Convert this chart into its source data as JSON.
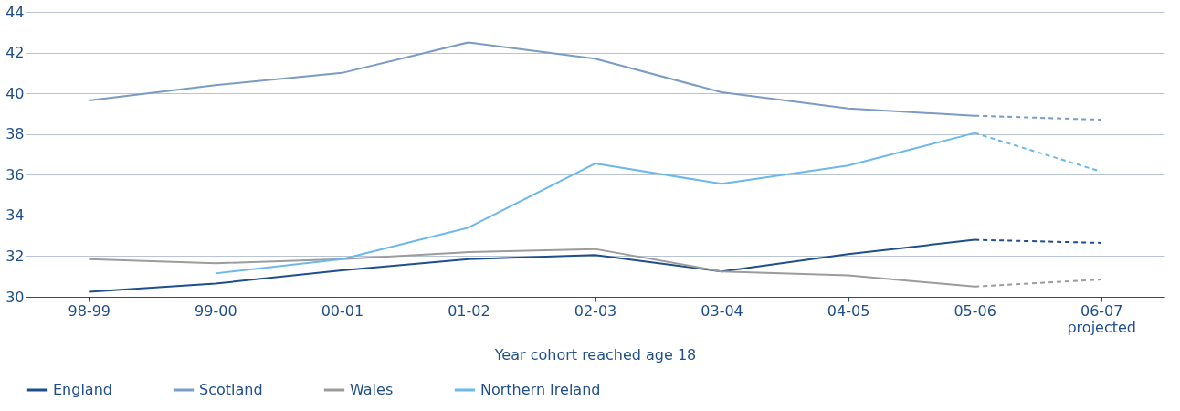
{
  "chart_data": {
    "type": "line",
    "xlabel": "Year cohort reached age 18",
    "categories": [
      "98-99",
      "99-00",
      "00-01",
      "01-02",
      "02-03",
      "03-04",
      "04-05",
      "05-06",
      "06-07 projected"
    ],
    "ylim": [
      30,
      44
    ],
    "yticks": [
      30,
      32,
      34,
      36,
      38,
      40,
      42,
      44
    ],
    "grid": "y",
    "legend": "bottom",
    "marker": "none",
    "line_style": "solid",
    "series": [
      {
        "name": "England",
        "color": "#1f4e8c",
        "values": [
          30.25,
          30.65,
          31.3,
          31.85,
          32.05,
          31.25,
          32.1,
          32.8,
          null
        ]
      },
      {
        "name": "Scotland",
        "color": "#7a9cc4",
        "values": [
          39.65,
          40.4,
          41.0,
          42.5,
          41.7,
          40.05,
          39.25,
          38.9,
          null
        ]
      },
      {
        "name": "Wales",
        "color": "#9c9c9c",
        "values": [
          31.85,
          31.65,
          31.85,
          32.2,
          32.35,
          31.25,
          31.05,
          30.5,
          null
        ]
      },
      {
        "name": "Northern Ireland",
        "color": "#6cb8ea",
        "values": [
          null,
          31.15,
          31.85,
          33.4,
          36.55,
          35.55,
          36.45,
          38.05,
          null
        ]
      },
      {
        "color": "#1f4e8c",
        "line_style": "dashed",
        "values": [
          null,
          null,
          null,
          null,
          null,
          null,
          null,
          32.8,
          32.65
        ]
      },
      {
        "color": "#7a9cc4",
        "line_style": "dashed",
        "values": [
          null,
          null,
          null,
          null,
          null,
          null,
          null,
          38.9,
          38.7
        ]
      },
      {
        "color": "#9c9c9c",
        "line_style": "dashed",
        "values": [
          null,
          null,
          null,
          null,
          null,
          null,
          null,
          30.5,
          30.85
        ]
      },
      {
        "color": "#6cb8ea",
        "line_style": "dashed",
        "values": [
          null,
          null,
          null,
          null,
          null,
          null,
          null,
          38.05,
          36.15
        ]
      }
    ]
  }
}
